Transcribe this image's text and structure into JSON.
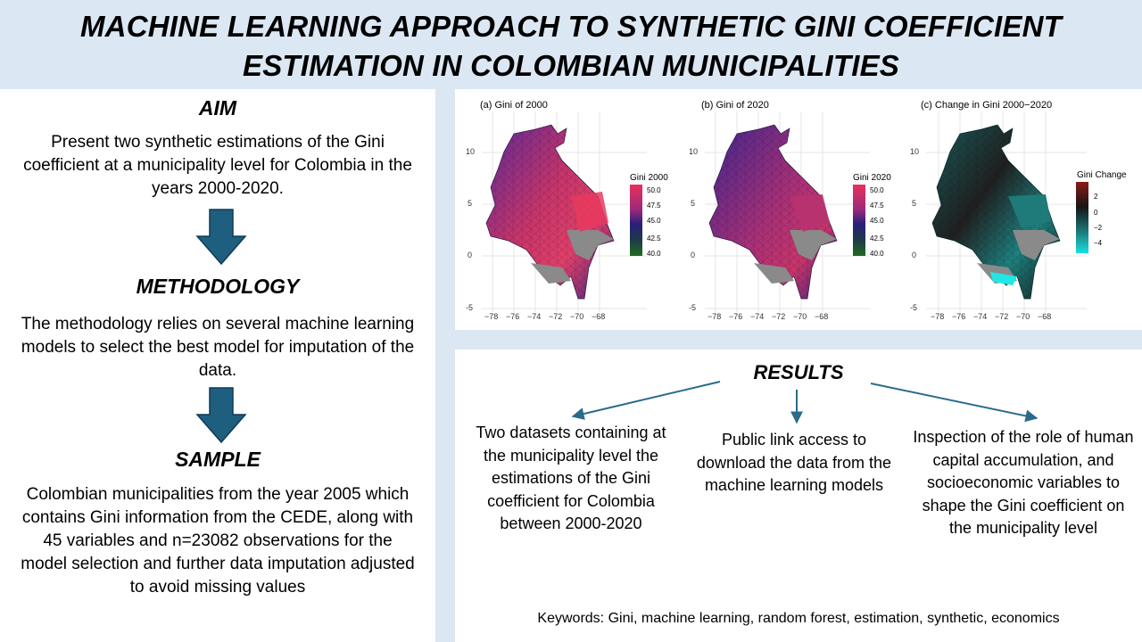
{
  "title": {
    "line1": "MACHINE LEARNING APPROACH TO SYNTHETIC GINI COEFFICIENT",
    "line2": "ESTIMATION IN COLOMBIAN MUNICIPALITIES"
  },
  "aim": {
    "heading": "AIM",
    "text": "Present two synthetic estimations of the Gini coefficient at a municipality level for Colombia in the years 2000-2020."
  },
  "methodology": {
    "heading": "METHODOLOGY",
    "text": "The methodology relies on several machine learning models to select the best model for imputation of the data."
  },
  "sample": {
    "heading": "SAMPLE",
    "text": "Colombian municipalities from the year 2005 which contains Gini information from the CEDE, along with 45 variables and n=23082 observations for the model selection and further data imputation adjusted to avoid missing values"
  },
  "maps": [
    {
      "title": "(a) Gini of 2000",
      "legend_title": "Gini 2000",
      "legend_ticks": [
        "50.0",
        "47.5",
        "45.0",
        "42.5",
        "40.0"
      ],
      "y_ticks": [
        "10",
        "5",
        "0",
        "-5"
      ],
      "x_ticks": [
        "−78",
        "−76",
        "−74",
        "−72",
        "−70",
        "−68"
      ]
    },
    {
      "title": "(b) Gini of 2020",
      "legend_title": "Gini 2020",
      "legend_ticks": [
        "50.0",
        "47.5",
        "45.0",
        "42.5",
        "40.0"
      ],
      "y_ticks": [
        "10",
        "5",
        "0",
        "-5"
      ],
      "x_ticks": [
        "−78",
        "−76",
        "−74",
        "−72",
        "−70",
        "−68"
      ]
    },
    {
      "title": "(c) Change in Gini 2000−2020",
      "legend_title": "Gini Change",
      "legend_ticks": [
        "2",
        "0",
        "−2",
        "−4"
      ],
      "y_ticks": [
        "10",
        "5",
        "0",
        "-5"
      ],
      "x_ticks": [
        "−78",
        "−76",
        "−74",
        "−72",
        "−70",
        "−68"
      ]
    }
  ],
  "results": {
    "heading": "RESULTS",
    "item1": "Two datasets containing at the municipality level the estimations of the Gini coefficient for Colombia between 2000-2020",
    "item2": "Public link access to download the data from the machine learning models",
    "item3": "Inspection of the role of human capital accumulation, and socioeconomic variables to shape the Gini coefficient on the municipality level"
  },
  "keywords": "Keywords: Gini, machine learning, random forest, estimation, synthetic, economics",
  "colors": {
    "background": "#dbe7f3",
    "arrow": "#1e5f80",
    "result_arrow": "#2b6b8a",
    "gini_high": "#e8305a",
    "gini_mid": "#2a1f7a",
    "gini_low": "#1f6b1f",
    "change_high": "#8c1a1a",
    "change_zero": "#151515",
    "change_low": "#19e0e0"
  }
}
